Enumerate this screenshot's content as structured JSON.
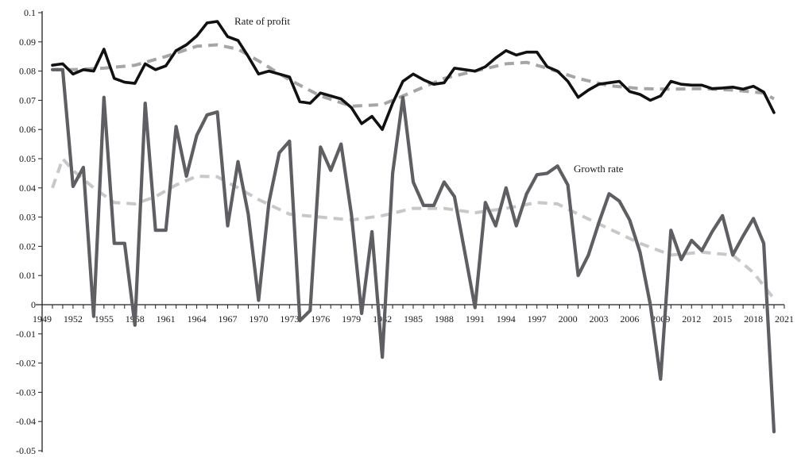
{
  "chart_data": {
    "type": "line",
    "title": "",
    "xlabel": "",
    "ylabel": "",
    "xlim": [
      1949,
      2021
    ],
    "ylim": [
      -0.05,
      0.1
    ],
    "grid": false,
    "x_tick_labels": [
      "1949",
      "1952",
      "1955",
      "1958",
      "1961",
      "1964",
      "1967",
      "1970",
      "1973",
      "1976",
      "1979",
      "1982",
      "1985",
      "1988",
      "1991",
      "1994",
      "1997",
      "2000",
      "2003",
      "2006",
      "2009",
      "2012",
      "2015",
      "2018",
      "2021"
    ],
    "y_tick_labels": [
      "0.1",
      "0.09",
      "0.08",
      "0.07",
      "0.06",
      "0.05",
      "0.04",
      "0.03",
      "0.02",
      "0.01",
      "0",
      "-0.01",
      "-0.02",
      "-0.03",
      "-0.04",
      "-0.05"
    ],
    "annotations": [
      {
        "text": "Rate of profit",
        "series": "rate_of_profit"
      },
      {
        "text": "Growth rate",
        "series": "growth_rate"
      }
    ],
    "series": [
      {
        "id": "rate_of_profit",
        "style": "solid",
        "color": "#111111",
        "x": [
          1950,
          1951,
          1952,
          1953,
          1954,
          1955,
          1956,
          1957,
          1958,
          1959,
          1960,
          1961,
          1962,
          1963,
          1964,
          1965,
          1966,
          1967,
          1968,
          1969,
          1970,
          1971,
          1972,
          1973,
          1974,
          1975,
          1976,
          1977,
          1978,
          1979,
          1980,
          1981,
          1982,
          1983,
          1984,
          1985,
          1986,
          1987,
          1988,
          1989,
          1990,
          1991,
          1992,
          1993,
          1994,
          1995,
          1996,
          1997,
          1998,
          1999,
          2000,
          2001,
          2002,
          2003,
          2004,
          2005,
          2006,
          2007,
          2008,
          2009,
          2010,
          2011,
          2012,
          2013,
          2014,
          2015,
          2016,
          2017,
          2018,
          2019,
          2020
        ],
        "values": [
          0.082,
          0.0825,
          0.079,
          0.0805,
          0.08,
          0.0875,
          0.0775,
          0.0762,
          0.0758,
          0.0825,
          0.0805,
          0.0818,
          0.087,
          0.089,
          0.092,
          0.0965,
          0.097,
          0.0918,
          0.0905,
          0.085,
          0.079,
          0.08,
          0.079,
          0.078,
          0.0695,
          0.069,
          0.0725,
          0.0715,
          0.0705,
          0.0675,
          0.062,
          0.0645,
          0.06,
          0.069,
          0.0765,
          0.079,
          0.077,
          0.0755,
          0.076,
          0.081,
          0.0805,
          0.08,
          0.0815,
          0.0845,
          0.087,
          0.0855,
          0.0865,
          0.0865,
          0.0815,
          0.08,
          0.0765,
          0.071,
          0.0735,
          0.0755,
          0.076,
          0.0765,
          0.073,
          0.072,
          0.07,
          0.0715,
          0.0765,
          0.0755,
          0.0752,
          0.0752,
          0.074,
          0.0742,
          0.0745,
          0.0738,
          0.0748,
          0.0728,
          0.0658
        ]
      },
      {
        "id": "growth_rate",
        "style": "solid",
        "color": "#5f5f63",
        "x": [
          1950,
          1951,
          1952,
          1953,
          1954,
          1955,
          1956,
          1957,
          1958,
          1959,
          1960,
          1961,
          1962,
          1963,
          1964,
          1965,
          1966,
          1967,
          1968,
          1969,
          1970,
          1971,
          1972,
          1973,
          1974,
          1975,
          1976,
          1977,
          1978,
          1979,
          1980,
          1981,
          1982,
          1983,
          1984,
          1985,
          1986,
          1987,
          1988,
          1989,
          1990,
          1991,
          1992,
          1993,
          1994,
          1995,
          1996,
          1997,
          1998,
          1999,
          2000,
          2001,
          2002,
          2003,
          2004,
          2005,
          2006,
          2007,
          2008,
          2009,
          2010,
          2011,
          2012,
          2013,
          2014,
          2015,
          2016,
          2017,
          2018,
          2019,
          2020
        ],
        "values": [
          0.0805,
          0.0805,
          0.0405,
          0.047,
          -0.004,
          0.071,
          0.021,
          0.021,
          -0.007,
          0.069,
          0.0255,
          0.0255,
          0.061,
          0.044,
          0.058,
          0.065,
          0.066,
          0.027,
          0.049,
          0.031,
          0.0015,
          0.035,
          0.052,
          0.056,
          -0.0055,
          -0.002,
          0.054,
          0.046,
          0.055,
          0.031,
          -0.003,
          0.025,
          -0.018,
          0.045,
          0.071,
          0.042,
          0.034,
          0.034,
          0.042,
          0.037,
          0.018,
          -0.001,
          0.035,
          0.027,
          0.04,
          0.027,
          0.038,
          0.0445,
          0.045,
          0.0475,
          0.041,
          0.01,
          0.017,
          0.028,
          0.038,
          0.0355,
          0.029,
          0.018,
          0.0,
          -0.0255,
          0.0255,
          0.0155,
          0.022,
          0.0185,
          0.025,
          0.0305,
          0.017,
          0.0235,
          0.0295,
          0.021,
          -0.0435
        ]
      },
      {
        "id": "rate_of_profit_trend",
        "style": "dashed",
        "color": "#a6a6a6",
        "x": [
          1950,
          1952,
          1955,
          1958,
          1961,
          1964,
          1966,
          1968,
          1970,
          1973,
          1976,
          1979,
          1982,
          1985,
          1988,
          1991,
          1994,
          1996,
          1998,
          2001,
          2004,
          2007,
          2010,
          2013,
          2016,
          2019,
          2020
        ],
        "values": [
          0.0805,
          0.0805,
          0.081,
          0.082,
          0.085,
          0.0885,
          0.089,
          0.0875,
          0.0835,
          0.077,
          0.0715,
          0.068,
          0.0685,
          0.073,
          0.0775,
          0.08,
          0.0825,
          0.083,
          0.081,
          0.0775,
          0.075,
          0.074,
          0.0738,
          0.074,
          0.0735,
          0.0725,
          0.0705
        ]
      },
      {
        "id": "growth_rate_trend",
        "style": "dashed",
        "color": "#c8c8c8",
        "x": [
          1950,
          1951,
          1952,
          1954,
          1956,
          1958,
          1960,
          1962,
          1964,
          1966,
          1968,
          1970,
          1973,
          1976,
          1979,
          1982,
          1985,
          1988,
          1991,
          1994,
          1997,
          1999,
          2001,
          2004,
          2007,
          2010,
          2013,
          2016,
          2018,
          2020
        ],
        "values": [
          0.04,
          0.05,
          0.046,
          0.04,
          0.035,
          0.0345,
          0.037,
          0.041,
          0.044,
          0.0438,
          0.04,
          0.036,
          0.031,
          0.03,
          0.029,
          0.0305,
          0.033,
          0.033,
          0.0315,
          0.033,
          0.035,
          0.0345,
          0.031,
          0.026,
          0.021,
          0.017,
          0.018,
          0.017,
          0.011,
          0.002
        ]
      }
    ]
  }
}
